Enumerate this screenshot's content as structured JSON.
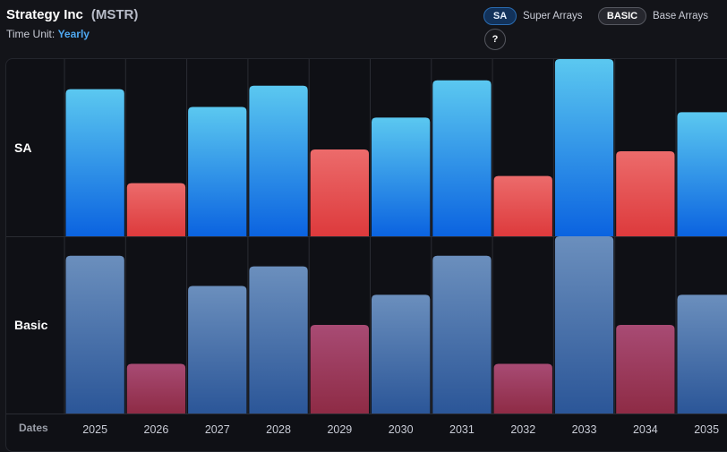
{
  "header": {
    "company": "Strategy Inc",
    "ticker": "(MSTR)",
    "time_unit_label": "Time Unit:",
    "time_unit_value": "Yearly"
  },
  "legend": {
    "sa_badge": "SA",
    "sa_text": "Super Arrays",
    "basic_badge": "BASIC",
    "basic_text": "Base Arrays",
    "help_label": "?"
  },
  "row_labels": {
    "sa": "SA",
    "basic": "Basic"
  },
  "dates_label": "Dates",
  "colors": {
    "positive_top": "#5bc8f0",
    "positive_bottom": "#0b63e0",
    "negative_top": "#ec6b6b",
    "negative_bottom": "#dd3a3c",
    "basic_pos_top": "#6b8fbd",
    "basic_pos_bottom": "#2b5698",
    "basic_neg_top": "#a84b74",
    "basic_neg_bottom": "#8e2b45",
    "accent": "#4fa8f0"
  },
  "chart_data": {
    "type": "bar",
    "title": "Strategy Inc (MSTR)",
    "xlabel": "Dates",
    "categories": [
      "2025",
      "2026",
      "2027",
      "2028",
      "2029",
      "2030",
      "2031",
      "2032",
      "2033",
      "2034",
      "2035"
    ],
    "series": [
      {
        "name": "SA",
        "values": [
          83,
          30,
          73,
          85,
          49,
          67,
          88,
          34,
          100,
          48,
          70
        ],
        "signs": [
          "pos",
          "neg",
          "pos",
          "pos",
          "neg",
          "pos",
          "pos",
          "neg",
          "pos",
          "neg",
          "pos"
        ]
      },
      {
        "name": "Basic",
        "values": [
          89,
          28,
          72,
          83,
          50,
          67,
          89,
          28,
          100,
          50,
          67
        ],
        "signs": [
          "pos",
          "neg",
          "pos",
          "pos",
          "neg",
          "pos",
          "pos",
          "neg",
          "pos",
          "neg",
          "pos"
        ]
      }
    ],
    "ylim": [
      0,
      100
    ],
    "grid": true
  }
}
